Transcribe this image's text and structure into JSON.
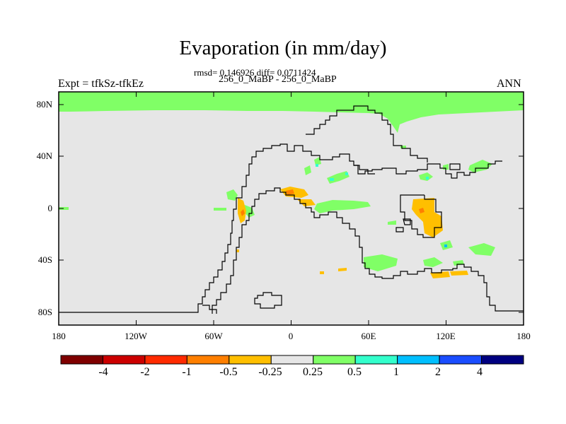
{
  "title": "Evaporation (in mm/day)",
  "stats_line": "rmsd= 0.146926 diff= 0.0711424",
  "subtitle": "256_0_MaBP - 256_0_MaBP",
  "left_label": "Expt = tfkSz-tfkEz",
  "right_label": "ANN",
  "lat_ticks": [
    "80N",
    "40N",
    "0",
    "40S",
    "80S"
  ],
  "lon_ticks": [
    "180",
    "120W",
    "60W",
    "0",
    "60E",
    "120E",
    "180"
  ],
  "colorbar": {
    "labels": [
      "-4",
      "-2",
      "-1",
      "-0.5",
      "-0.25",
      "0.25",
      "0.5",
      "1",
      "2",
      "4"
    ],
    "colors": [
      "#7f0000",
      "#cc0000",
      "#ff2a00",
      "#ff7f00",
      "#ffbf00",
      "#e6e6e6",
      "#80ff66",
      "#33ffcc",
      "#00bfff",
      "#1a4dff",
      "#000080"
    ]
  },
  "map": {
    "background_color": "#e6e6e6",
    "projection": "cylindrical-equidistant",
    "lon_range": [
      -180,
      180
    ],
    "lat_range": [
      -90,
      90
    ]
  }
}
